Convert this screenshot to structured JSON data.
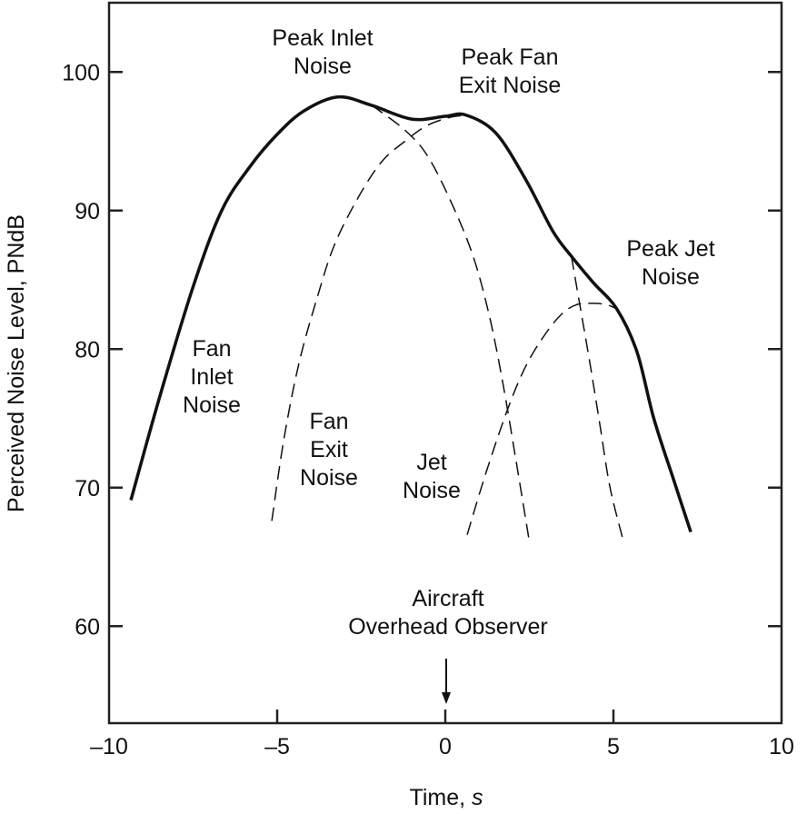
{
  "chart_data": {
    "type": "line",
    "title": "",
    "xlabel": "Time, ",
    "xlabel_italic": "s",
    "ylabel": "Perceived Noise Level, PNdB",
    "xlim": [
      -10,
      10
    ],
    "ylim": [
      53,
      105
    ],
    "x_ticks": [
      -10,
      -5,
      0,
      5,
      10
    ],
    "x_tick_labels": [
      "–10",
      "–5",
      "0",
      "5",
      "10"
    ],
    "y_ticks": [
      60,
      70,
      80,
      90,
      100
    ],
    "y_tick_labels": [
      "60",
      "70",
      "80",
      "90",
      "100"
    ],
    "grid": false,
    "series": [
      {
        "style": "solid",
        "x": [
          -9.35,
          -8.5,
          -7.5,
          -6.65,
          -5.8,
          -5.0,
          -4.2,
          -3.2,
          -2.2,
          -1.0,
          0.0,
          0.6,
          1.5,
          2.4,
          3.2,
          3.75,
          4.4,
          5.1,
          5.7,
          6.2,
          6.8,
          7.3
        ],
        "y": [
          69.1,
          76.5,
          84.5,
          90.0,
          93.2,
          95.5,
          97.2,
          98.2,
          97.6,
          96.6,
          96.8,
          96.9,
          95.6,
          92.2,
          88.5,
          86.7,
          84.8,
          82.9,
          79.8,
          75.0,
          70.5,
          66.8
        ]
      },
      {
        "style": "dashed",
        "x": [
          -2.2,
          -1.9,
          -1.2,
          -0.57,
          0.1,
          0.8,
          1.3,
          1.7,
          2.1,
          2.5
        ],
        "y": [
          97.6,
          97.1,
          95.8,
          94.1,
          91.0,
          86.9,
          82.5,
          77.7,
          72.0,
          66.1
        ]
      },
      {
        "style": "dashed",
        "x": [
          -5.16,
          -4.8,
          -4.35,
          -3.8,
          -3.3,
          -2.6,
          -1.9,
          -1.2,
          -0.57,
          0.1,
          0.65
        ],
        "y": [
          67.6,
          73.5,
          79.0,
          83.8,
          87.5,
          90.9,
          93.5,
          95.0,
          96.1,
          96.7,
          96.9
        ]
      },
      {
        "style": "dashed",
        "x": [
          3.75,
          4.0,
          4.3,
          4.6,
          4.9,
          5.3
        ],
        "y": [
          86.7,
          83.2,
          79.0,
          74.5,
          70.0,
          66.1
        ]
      },
      {
        "style": "dashed",
        "x": [
          0.65,
          1.2,
          1.86,
          2.4,
          2.95,
          3.45,
          3.9,
          4.4,
          4.8,
          5.1
        ],
        "y": [
          66.6,
          71.0,
          75.7,
          78.8,
          81.0,
          82.5,
          83.2,
          83.3,
          83.2,
          82.9
        ]
      }
    ],
    "annotations": {
      "peak_inlet": [
        "Peak Inlet",
        "Noise"
      ],
      "peak_fan_exit": [
        "Peak Fan",
        "Exit Noise"
      ],
      "peak_jet": [
        "Peak Jet",
        "Noise"
      ],
      "fan_inlet": [
        "Fan",
        "Inlet",
        "Noise"
      ],
      "fan_exit": [
        "Fan",
        "Exit",
        "Noise"
      ],
      "jet": [
        "Jet",
        "Noise"
      ],
      "observer": [
        "Aircraft",
        "Overhead Observer"
      ]
    }
  }
}
